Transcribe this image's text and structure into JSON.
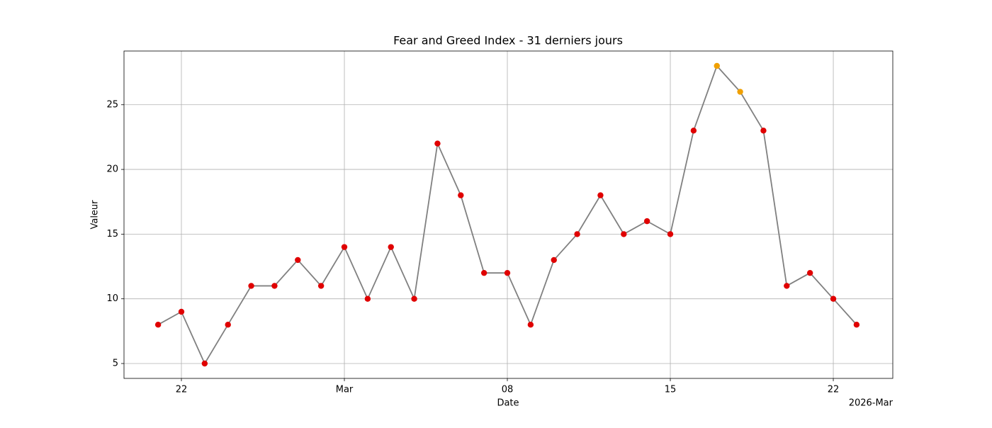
{
  "chart_data": {
    "type": "line",
    "title": "Fear and Greed Index - 31 derniers jours",
    "xlabel": "Date",
    "ylabel": "Valeur",
    "x_offset_label": "2026-Mar",
    "x": [
      "2026-02-21",
      "2026-02-22",
      "2026-02-23",
      "2026-02-24",
      "2026-02-25",
      "2026-02-26",
      "2026-02-27",
      "2026-02-28",
      "2026-03-01",
      "2026-03-02",
      "2026-03-03",
      "2026-03-04",
      "2026-03-05",
      "2026-03-06",
      "2026-03-07",
      "2026-03-08",
      "2026-03-09",
      "2026-03-10",
      "2026-03-11",
      "2026-03-12",
      "2026-03-13",
      "2026-03-14",
      "2026-03-15",
      "2026-03-16",
      "2026-03-17",
      "2026-03-18",
      "2026-03-19",
      "2026-03-20",
      "2026-03-21",
      "2026-03-22",
      "2026-03-23"
    ],
    "values": [
      8,
      9,
      5,
      8,
      11,
      11,
      13,
      11,
      14,
      10,
      14,
      10,
      22,
      18,
      12,
      12,
      8,
      13,
      15,
      18,
      15,
      16,
      15,
      23,
      28,
      26,
      23,
      11,
      12,
      10,
      8
    ],
    "line_color": "#808080",
    "point_colors": [
      "#e00000",
      "#e00000",
      "#e00000",
      "#e00000",
      "#e00000",
      "#e00000",
      "#e00000",
      "#e00000",
      "#e00000",
      "#e00000",
      "#e00000",
      "#e00000",
      "#e00000",
      "#e00000",
      "#e00000",
      "#e00000",
      "#e00000",
      "#e00000",
      "#e00000",
      "#e00000",
      "#e00000",
      "#e00000",
      "#e00000",
      "#e00000",
      "#f0a000",
      "#f0a000",
      "#e00000",
      "#e00000",
      "#e00000",
      "#e00000",
      "#e00000"
    ],
    "xlim": [
      "2026-02-19T12:50:00Z",
      "2026-03-24T13:20:00Z"
    ],
    "xticks": [
      {
        "value": "2026-02-22",
        "label": "22"
      },
      {
        "value": "2026-03-01",
        "label": "Mar"
      },
      {
        "value": "2026-03-08",
        "label": "08"
      },
      {
        "value": "2026-03-15",
        "label": "15"
      },
      {
        "value": "2026-03-22",
        "label": "22"
      }
    ],
    "ylim": [
      3.85,
      29.15
    ],
    "yticks": [
      5,
      10,
      15,
      20,
      25
    ],
    "grid": true
  }
}
